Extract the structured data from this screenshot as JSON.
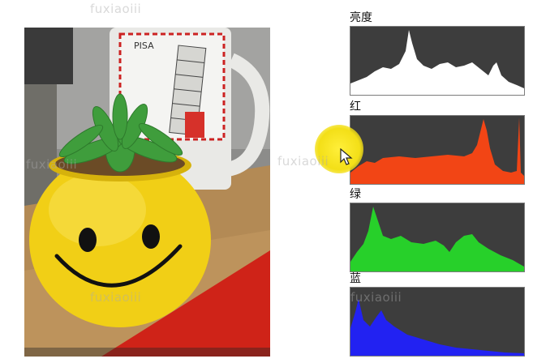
{
  "watermark_text": "fuxiaoiii",
  "photo": {
    "cup_text": "PISA"
  },
  "histograms": [
    {
      "label": "亮度",
      "fill": "#ffffff"
    },
    {
      "label": "红",
      "fill": "#f24515"
    },
    {
      "label": "绿",
      "fill": "#27d02a"
    },
    {
      "label": "蓝",
      "fill": "#2222f2"
    }
  ],
  "hist_background": "#3d3d3d",
  "cursor_highlight_color": "#f3df17"
}
